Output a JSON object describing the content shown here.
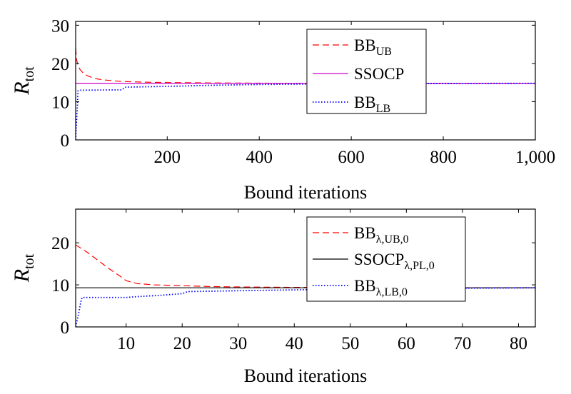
{
  "chart_data": [
    {
      "type": "line",
      "xlabel": "Bound iterations",
      "ylabel_main": "R",
      "ylabel_sub": "tot",
      "xlim": [
        1,
        1000
      ],
      "ylim": [
        0,
        31
      ],
      "xticks": [
        200,
        400,
        600,
        800,
        1000
      ],
      "xtick_labels": [
        "200",
        "400",
        "600",
        "800",
        "1,000"
      ],
      "yticks": [
        0,
        10,
        20,
        30
      ],
      "ytick_labels": [
        "0",
        "10",
        "20",
        "30"
      ],
      "legend_position": "top-right",
      "series": [
        {
          "name": "BB",
          "name_sub": "UB",
          "color": "#ff0000",
          "style": "dashed",
          "x": [
            1,
            3,
            6,
            10,
            15,
            20,
            30,
            40,
            50,
            70,
            100,
            150,
            200,
            300,
            400,
            500,
            600,
            800,
            1000
          ],
          "y": [
            24,
            21,
            19.5,
            18.5,
            17.8,
            17.2,
            16.6,
            16.2,
            15.9,
            15.6,
            15.3,
            15.1,
            15.0,
            14.9,
            14.85,
            14.8,
            14.8,
            14.8,
            14.8
          ]
        },
        {
          "name": "SSOCP",
          "name_sub": "",
          "color": "#cc00cc",
          "style": "solid",
          "x": [
            1,
            1000
          ],
          "y": [
            14.8,
            14.8
          ]
        },
        {
          "name": "BB",
          "name_sub": "LB",
          "color": "#0000ff",
          "style": "dotted",
          "x": [
            1,
            3,
            5,
            6,
            8,
            10,
            100,
            110,
            200,
            300,
            400,
            500,
            600,
            700,
            1000
          ],
          "y": [
            0,
            5,
            9,
            12.8,
            12.9,
            13.0,
            13.1,
            13.8,
            14.0,
            14.3,
            14.5,
            14.6,
            14.7,
            14.75,
            14.8
          ]
        }
      ]
    },
    {
      "type": "line",
      "xlabel": "Bound iterations",
      "ylabel_main": "R",
      "ylabel_sub": "tot",
      "xlim": [
        1,
        83
      ],
      "ylim": [
        0,
        28
      ],
      "xticks": [
        10,
        20,
        30,
        40,
        50,
        60,
        70,
        80
      ],
      "xtick_labels": [
        "10",
        "20",
        "30",
        "40",
        "50",
        "60",
        "70",
        "80"
      ],
      "yticks": [
        0,
        10,
        20
      ],
      "ytick_labels": [
        "0",
        "10",
        "20"
      ],
      "legend_position": "top-right",
      "series": [
        {
          "name": "BB",
          "name_sub": "λ,UB,0",
          "color": "#ff0000",
          "style": "dashed",
          "x": [
            1,
            3,
            5,
            7,
            9,
            10,
            12,
            15,
            20,
            25,
            30,
            40,
            50,
            60,
            70,
            83
          ],
          "y": [
            19.5,
            17.8,
            15.8,
            13.8,
            12.0,
            11.0,
            10.3,
            10.0,
            9.8,
            9.6,
            9.5,
            9.4,
            9.35,
            9.3,
            9.3,
            9.3
          ]
        },
        {
          "name": "SSOCP",
          "name_sub": "λ,PL,0",
          "color": "#000000",
          "style": "solid",
          "x": [
            1,
            83
          ],
          "y": [
            9.3,
            9.3
          ]
        },
        {
          "name": "BB",
          "name_sub": "λ,LB,0",
          "color": "#0000ff",
          "style": "dotted",
          "x": [
            1,
            1.5,
            2,
            2.2,
            10,
            12,
            16,
            20,
            21,
            30,
            40,
            50,
            60,
            70,
            83
          ],
          "y": [
            0,
            3,
            6.5,
            7.0,
            7.0,
            7.2,
            7.5,
            7.9,
            8.4,
            8.6,
            8.8,
            9.0,
            9.1,
            9.2,
            9.3
          ]
        }
      ]
    }
  ]
}
